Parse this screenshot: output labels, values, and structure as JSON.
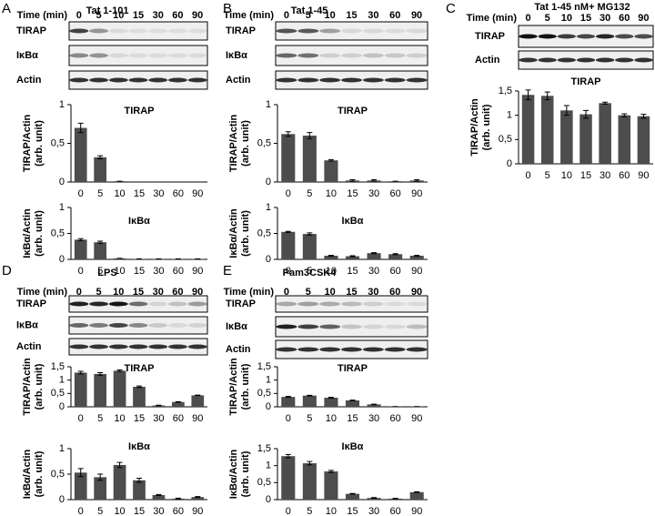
{
  "panels": [
    {
      "letter": "A",
      "title": "Tat 1-101",
      "time_label": "Time (min)",
      "times": [
        "0",
        "5",
        "10",
        "15",
        "30",
        "60",
        "90"
      ],
      "blots": [
        "TIRAP",
        "IκBα",
        "Actin"
      ]
    },
    {
      "letter": "B",
      "title": "Tat 1-45",
      "time_label": "Time (min)",
      "times": [
        "0",
        "5",
        "10",
        "15",
        "30",
        "60",
        "90"
      ],
      "blots": [
        "TIRAP",
        "IκBα",
        "Actin"
      ]
    },
    {
      "letter": "C",
      "title": "Tat 1-45 nM+ MG132",
      "time_label": "Time (min)",
      "times": [
        "0",
        "5",
        "10",
        "15",
        "30",
        "60",
        "90"
      ],
      "blots": [
        "TIRAP",
        "Actin"
      ]
    },
    {
      "letter": "D",
      "title": "LPS",
      "time_label": "Time (min)",
      "times": [
        "0",
        "5",
        "10",
        "15",
        "30",
        "60",
        "90"
      ],
      "blots": [
        "TIRAP",
        "IκBα",
        "Actin"
      ]
    },
    {
      "letter": "E",
      "title": "Pam3CSK4",
      "time_label": "Time (min)",
      "times": [
        "0",
        "5",
        "10",
        "15",
        "30",
        "60",
        "90"
      ],
      "blots": [
        "TIRAP",
        "IκBα",
        "Actin"
      ]
    }
  ],
  "chart_data": [
    {
      "type": "bar",
      "title": "TIRAP",
      "ylabel": [
        "TIRAP/Actin",
        "(arb. unit)"
      ],
      "categories": [
        "0",
        "5",
        "10",
        "15",
        "30",
        "60",
        "90"
      ],
      "values": [
        0.7,
        0.32,
        0.01,
        0,
        0,
        0,
        0
      ],
      "errors": [
        0.06,
        0.02,
        0,
        0,
        0,
        0,
        0
      ],
      "color": "#4d4d4d",
      "ylim": [
        0,
        1
      ],
      "yticks": [
        0,
        {
          "value": 0.5,
          "label": "0,5"
        },
        1
      ]
    },
    {
      "type": "bar",
      "title": "IκBα",
      "ylabel": [
        "IκBα/Actin",
        "(arb. unit)"
      ],
      "categories": [
        "0",
        "5",
        "10",
        "15",
        "30",
        "60",
        "90"
      ],
      "values": [
        0.38,
        0.33,
        0.02,
        0.01,
        0.01,
        0.01,
        0.01
      ],
      "errors": [
        0.02,
        0.02,
        0,
        0,
        0,
        0,
        0
      ],
      "color": "#4d4d4d",
      "ylim": [
        0,
        1
      ],
      "yticks": [
        0,
        {
          "value": 0.5,
          "label": "0,5"
        },
        1
      ]
    },
    {
      "type": "bar",
      "title": "TIRAP",
      "ylabel": [
        "TIRAP/Actin",
        "(arb. unit)"
      ],
      "categories": [
        "0",
        "5",
        "10",
        "15",
        "30",
        "60",
        "90"
      ],
      "values": [
        0.62,
        0.6,
        0.28,
        0.02,
        0.02,
        0.01,
        0.02
      ],
      "errors": [
        0.03,
        0.04,
        0.01,
        0.01,
        0.01,
        0,
        0.01
      ],
      "color": "#4d4d4d",
      "ylim": [
        0,
        1
      ],
      "yticks": [
        0,
        {
          "value": 0.5,
          "label": "0,5"
        },
        1
      ]
    },
    {
      "type": "bar",
      "title": "IκBα",
      "ylabel": [
        "IκBα/Actin",
        "(arb. unit)"
      ],
      "categories": [
        "0",
        "5",
        "10",
        "15",
        "30",
        "60",
        "90"
      ],
      "values": [
        0.53,
        0.49,
        0.07,
        0.06,
        0.12,
        0.1,
        0.07
      ],
      "errors": [
        0.01,
        0.02,
        0.01,
        0.01,
        0.01,
        0.01,
        0.01
      ],
      "color": "#4d4d4d",
      "ylim": [
        0,
        1
      ],
      "yticks": [
        0,
        {
          "value": 0.5,
          "label": "0,5"
        },
        1
      ]
    },
    {
      "type": "bar",
      "title": "TIRAP",
      "ylabel": [
        "TIRAP/Actin",
        "(arb. unit)"
      ],
      "categories": [
        "0",
        "5",
        "10",
        "15",
        "30",
        "60",
        "90"
      ],
      "values": [
        1.42,
        1.4,
        1.1,
        1.02,
        1.25,
        1.0,
        0.98
      ],
      "errors": [
        0.1,
        0.08,
        0.1,
        0.08,
        0.02,
        0.03,
        0.04
      ],
      "color": "#4d4d4d",
      "ylim": [
        0,
        1.5
      ],
      "yticks": [
        0,
        {
          "value": 0.5,
          "label": "0,5"
        },
        1,
        {
          "value": 1.5,
          "label": "1,5"
        }
      ]
    },
    {
      "type": "bar",
      "title": "TIRAP",
      "ylabel": [
        "TIRAP/Actin",
        "(arb. unit)"
      ],
      "categories": [
        "0",
        "5",
        "10",
        "15",
        "30",
        "60",
        "90"
      ],
      "values": [
        1.28,
        1.23,
        1.35,
        0.75,
        0.05,
        0.18,
        0.43
      ],
      "errors": [
        0.05,
        0.05,
        0.03,
        0.03,
        0.01,
        0.01,
        0.01
      ],
      "color": "#4d4d4d",
      "ylim": [
        0,
        1.5
      ],
      "yticks": [
        0,
        {
          "value": 0.5,
          "label": "0,5"
        },
        1,
        {
          "value": 1.5,
          "label": "1,5"
        }
      ]
    },
    {
      "type": "bar",
      "title": "IκBα",
      "ylabel": [
        "IκBα/Actin",
        "(arb. unit)"
      ],
      "categories": [
        "0",
        "5",
        "10",
        "15",
        "30",
        "60",
        "90"
      ],
      "values": [
        0.53,
        0.44,
        0.68,
        0.38,
        0.09,
        0.02,
        0.05
      ],
      "errors": [
        0.08,
        0.06,
        0.05,
        0.04,
        0.01,
        0.01,
        0.01
      ],
      "color": "#4d4d4d",
      "ylim": [
        0,
        1
      ],
      "yticks": [
        0,
        {
          "value": 0.5,
          "label": "0,5"
        },
        1
      ]
    },
    {
      "type": "bar",
      "title": "TIRAP",
      "ylabel": [
        "TIRAP/Actin",
        "(arb. unit)"
      ],
      "categories": [
        "0",
        "5",
        "10",
        "15",
        "30",
        "60",
        "90"
      ],
      "values": [
        0.37,
        0.42,
        0.34,
        0.24,
        0.09,
        0.01,
        0.01
      ],
      "errors": [
        0.02,
        0.01,
        0.02,
        0.01,
        0.01,
        0,
        0
      ],
      "color": "#4d4d4d",
      "ylim": [
        0,
        1.5
      ],
      "yticks": [
        0,
        {
          "value": 0.5,
          "label": "0,5"
        },
        1,
        {
          "value": 1.5,
          "label": "1,5"
        }
      ]
    },
    {
      "type": "bar",
      "title": "IκBα",
      "ylabel": [
        "IκBα/Actin",
        "(arb. unit)"
      ],
      "categories": [
        "0",
        "5",
        "10",
        "15",
        "30",
        "60",
        "90"
      ],
      "values": [
        1.28,
        1.07,
        0.83,
        0.17,
        0.05,
        0.03,
        0.22
      ],
      "errors": [
        0.05,
        0.05,
        0.03,
        0.01,
        0.01,
        0.01,
        0.01
      ],
      "color": "#4d4d4d",
      "ylim": [
        0,
        1.5
      ],
      "yticks": [
        0,
        {
          "value": 0.5,
          "label": "0,5"
        },
        1,
        {
          "value": 1.5,
          "label": "1,5"
        }
      ]
    }
  ]
}
